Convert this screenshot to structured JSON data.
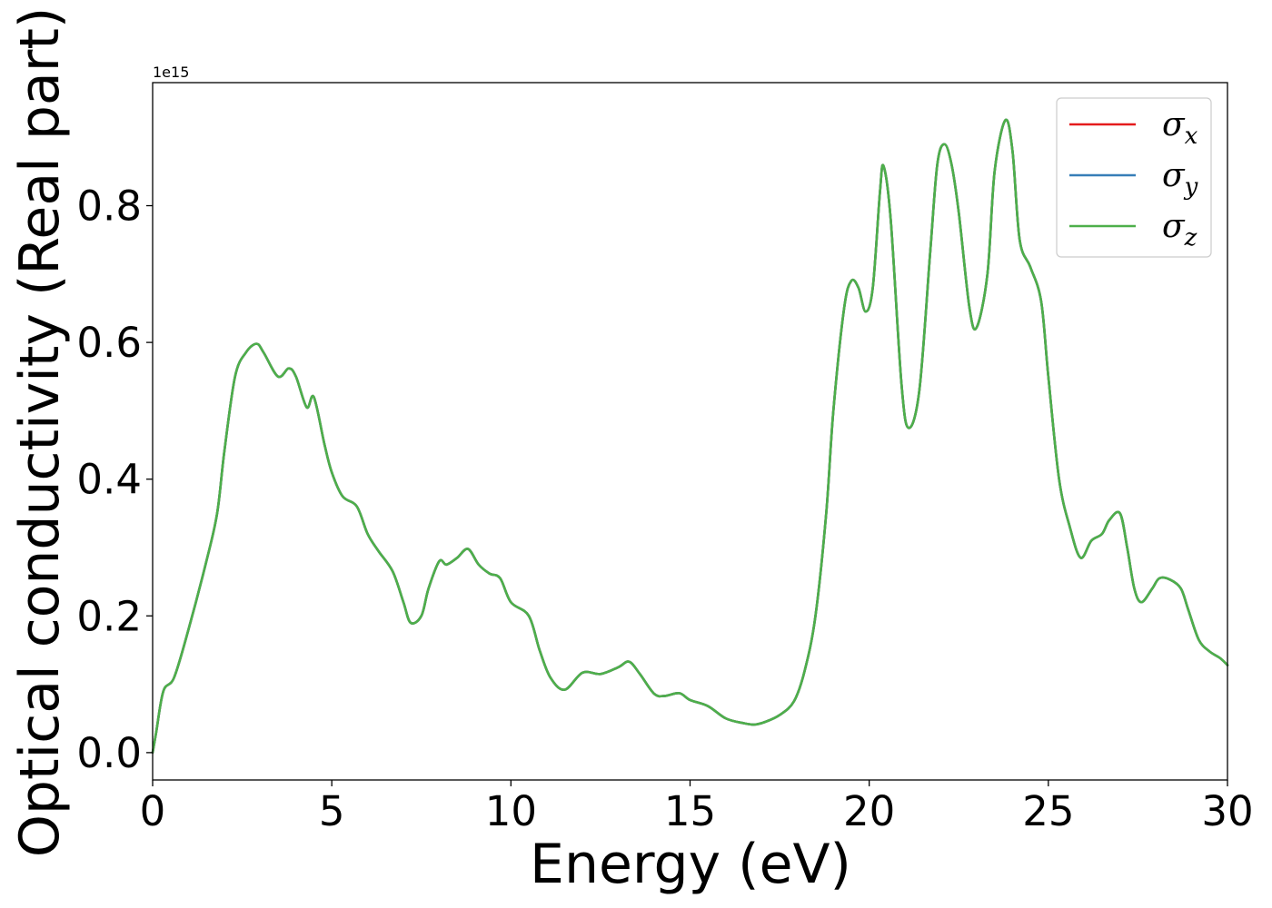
{
  "chart_data": {
    "type": "line",
    "xlabel": "Energy (eV)",
    "ylabel": "Optical conductivity (Real part)",
    "y_offset_text": "1e15",
    "xlim": [
      0,
      30
    ],
    "ylim": [
      -0.04,
      0.98
    ],
    "xticks": [
      0,
      5,
      10,
      15,
      20,
      25,
      30
    ],
    "yticks": [
      0.0,
      0.2,
      0.4,
      0.6,
      0.8
    ],
    "ytick_labels": [
      "0.0",
      "0.2",
      "0.4",
      "0.6",
      "0.8"
    ],
    "grid": false,
    "legend_position": "top-right",
    "colors": {
      "sigma_x": "#e41a1c",
      "sigma_y": "#377eb8",
      "sigma_z": "#4daf4a"
    },
    "legend": [
      {
        "symbol": "σ",
        "sub": "x",
        "color": "#e41a1c"
      },
      {
        "symbol": "σ",
        "sub": "y",
        "color": "#377eb8"
      },
      {
        "symbol": "σ",
        "sub": "z",
        "color": "#4daf4a"
      }
    ],
    "x": [
      0,
      0.1,
      0.3,
      0.6,
      1.0,
      1.5,
      1.8,
      2.0,
      2.3,
      2.6,
      2.9,
      3.1,
      3.5,
      3.8,
      4.0,
      4.3,
      4.5,
      4.8,
      5.0,
      5.3,
      5.7,
      6.0,
      6.3,
      6.7,
      7.0,
      7.2,
      7.5,
      7.7,
      8.0,
      8.2,
      8.5,
      8.8,
      9.1,
      9.4,
      9.7,
      10.0,
      10.5,
      10.8,
      11.1,
      11.5,
      12.0,
      12.5,
      13.0,
      13.3,
      13.6,
      14.0,
      14.3,
      14.7,
      15.0,
      15.5,
      16.0,
      16.5,
      16.8,
      17.1,
      17.5,
      17.9,
      18.2,
      18.5,
      18.8,
      19.0,
      19.3,
      19.5,
      19.7,
      19.9,
      20.1,
      20.3,
      20.4,
      20.6,
      20.9,
      21.1,
      21.4,
      21.7,
      21.9,
      22.1,
      22.3,
      22.5,
      22.8,
      23.0,
      23.3,
      23.5,
      23.8,
      24.0,
      24.2,
      24.5,
      24.8,
      25.0,
      25.3,
      25.6,
      25.9,
      26.2,
      26.5,
      26.7,
      27.0,
      27.2,
      27.4,
      27.6,
      27.9,
      28.1,
      28.4,
      28.7,
      28.9,
      29.2,
      29.5,
      29.8,
      30.0
    ],
    "series": [
      {
        "name": "σx",
        "values": [
          0.0,
          0.03,
          0.09,
          0.11,
          0.18,
          0.28,
          0.35,
          0.44,
          0.55,
          0.585,
          0.598,
          0.585,
          0.55,
          0.562,
          0.55,
          0.505,
          0.52,
          0.45,
          0.41,
          0.375,
          0.36,
          0.32,
          0.295,
          0.265,
          0.22,
          0.19,
          0.2,
          0.24,
          0.28,
          0.275,
          0.285,
          0.298,
          0.275,
          0.262,
          0.255,
          0.22,
          0.2,
          0.15,
          0.11,
          0.092,
          0.117,
          0.115,
          0.125,
          0.133,
          0.115,
          0.086,
          0.083,
          0.087,
          0.077,
          0.068,
          0.05,
          0.043,
          0.041,
          0.045,
          0.055,
          0.075,
          0.12,
          0.2,
          0.35,
          0.5,
          0.65,
          0.69,
          0.68,
          0.645,
          0.68,
          0.82,
          0.858,
          0.78,
          0.54,
          0.475,
          0.53,
          0.73,
          0.86,
          0.89,
          0.86,
          0.79,
          0.65,
          0.622,
          0.7,
          0.85,
          0.925,
          0.88,
          0.75,
          0.71,
          0.66,
          0.55,
          0.4,
          0.33,
          0.285,
          0.31,
          0.32,
          0.34,
          0.35,
          0.3,
          0.24,
          0.22,
          0.24,
          0.255,
          0.253,
          0.24,
          0.21,
          0.165,
          0.148,
          0.138,
          0.128
        ]
      },
      {
        "name": "σy",
        "values": [
          0.0,
          0.03,
          0.09,
          0.11,
          0.18,
          0.28,
          0.35,
          0.44,
          0.55,
          0.585,
          0.598,
          0.585,
          0.55,
          0.562,
          0.55,
          0.505,
          0.52,
          0.45,
          0.41,
          0.375,
          0.36,
          0.32,
          0.295,
          0.265,
          0.22,
          0.19,
          0.2,
          0.24,
          0.28,
          0.275,
          0.285,
          0.298,
          0.275,
          0.262,
          0.255,
          0.22,
          0.2,
          0.15,
          0.11,
          0.092,
          0.117,
          0.115,
          0.125,
          0.133,
          0.115,
          0.086,
          0.083,
          0.087,
          0.077,
          0.068,
          0.05,
          0.043,
          0.041,
          0.045,
          0.055,
          0.075,
          0.12,
          0.2,
          0.35,
          0.5,
          0.65,
          0.69,
          0.68,
          0.645,
          0.68,
          0.82,
          0.858,
          0.78,
          0.54,
          0.475,
          0.53,
          0.73,
          0.86,
          0.89,
          0.86,
          0.79,
          0.65,
          0.622,
          0.7,
          0.85,
          0.925,
          0.88,
          0.75,
          0.71,
          0.66,
          0.55,
          0.4,
          0.33,
          0.285,
          0.31,
          0.32,
          0.34,
          0.35,
          0.3,
          0.24,
          0.22,
          0.24,
          0.255,
          0.253,
          0.24,
          0.21,
          0.165,
          0.148,
          0.138,
          0.128
        ]
      },
      {
        "name": "σz",
        "values": [
          0.0,
          0.03,
          0.09,
          0.11,
          0.18,
          0.28,
          0.35,
          0.44,
          0.55,
          0.585,
          0.598,
          0.585,
          0.55,
          0.562,
          0.55,
          0.505,
          0.52,
          0.45,
          0.41,
          0.375,
          0.36,
          0.32,
          0.295,
          0.265,
          0.22,
          0.19,
          0.2,
          0.24,
          0.28,
          0.275,
          0.285,
          0.298,
          0.275,
          0.262,
          0.255,
          0.22,
          0.2,
          0.15,
          0.11,
          0.092,
          0.117,
          0.115,
          0.125,
          0.133,
          0.115,
          0.086,
          0.083,
          0.087,
          0.077,
          0.068,
          0.05,
          0.043,
          0.041,
          0.045,
          0.055,
          0.075,
          0.12,
          0.2,
          0.35,
          0.5,
          0.65,
          0.69,
          0.68,
          0.645,
          0.68,
          0.82,
          0.858,
          0.78,
          0.54,
          0.475,
          0.53,
          0.73,
          0.86,
          0.89,
          0.86,
          0.79,
          0.65,
          0.622,
          0.7,
          0.85,
          0.925,
          0.88,
          0.75,
          0.71,
          0.66,
          0.55,
          0.4,
          0.33,
          0.285,
          0.31,
          0.32,
          0.34,
          0.35,
          0.3,
          0.24,
          0.22,
          0.24,
          0.255,
          0.253,
          0.24,
          0.21,
          0.165,
          0.148,
          0.138,
          0.128
        ]
      }
    ]
  }
}
